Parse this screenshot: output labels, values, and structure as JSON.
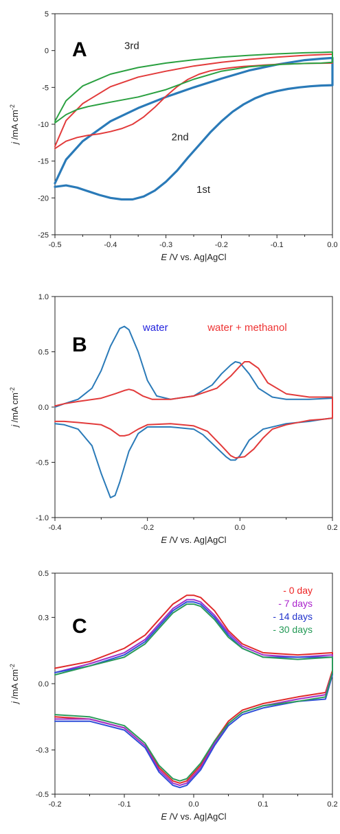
{
  "chart_data": [
    {
      "type": "line",
      "panel_label": "A",
      "xlabel": {
        "italic": "E",
        "rest": " /V vs. Ag|AgCl"
      },
      "ylabel": {
        "italic": "j",
        "rest": " /mA cm",
        "sup": "-2"
      },
      "xlim": [
        -0.5,
        0.0
      ],
      "ylim": [
        -25,
        5
      ],
      "xticks": [
        -0.5,
        -0.4,
        -0.3,
        -0.2,
        -0.1,
        0.0
      ],
      "xtick_labels": [
        "-0.5",
        "-0.4",
        "-0.3",
        "-0.2",
        "-0.1",
        "0.0"
      ],
      "yticks": [
        -25,
        -20,
        -15,
        -10,
        -5,
        0,
        5
      ],
      "ytick_labels": [
        "-25",
        "-20",
        "-15",
        "-10",
        "-5",
        "0",
        "5"
      ],
      "grid": false,
      "annotations": [
        {
          "text": "3rd",
          "x": -0.375,
          "y": 0.2,
          "color": "#222222"
        },
        {
          "text": "2nd",
          "x": -0.29,
          "y": -12.2,
          "color": "#222222"
        },
        {
          "text": "1st",
          "x": -0.245,
          "y": -19.3,
          "color": "#222222"
        }
      ],
      "series": [
        {
          "color": "#2a7ab8",
          "width": 3.2,
          "x": [
            -0.5,
            -0.48,
            -0.46,
            -0.44,
            -0.42,
            -0.4,
            -0.38,
            -0.36,
            -0.34,
            -0.32,
            -0.3,
            -0.28,
            -0.26,
            -0.24,
            -0.22,
            -0.2,
            -0.18,
            -0.16,
            -0.14,
            -0.12,
            -0.1,
            -0.08,
            -0.06,
            -0.04,
            -0.02,
            0.0,
            0.0,
            -0.02,
            -0.05,
            -0.1,
            -0.15,
            -0.2,
            -0.25,
            -0.3,
            -0.35,
            -0.4,
            -0.45,
            -0.48,
            -0.5
          ],
          "y": [
            -18.5,
            -18.3,
            -18.6,
            -19.1,
            -19.6,
            -20.0,
            -20.2,
            -20.2,
            -19.8,
            -19.0,
            -17.8,
            -16.3,
            -14.5,
            -12.8,
            -11.1,
            -9.6,
            -8.3,
            -7.3,
            -6.5,
            -5.9,
            -5.5,
            -5.2,
            -5.0,
            -4.85,
            -4.75,
            -4.7,
            -1.0,
            -1.1,
            -1.3,
            -1.9,
            -2.7,
            -3.8,
            -5.0,
            -6.3,
            -7.8,
            -9.6,
            -12.3,
            -14.8,
            -18.0
          ]
        },
        {
          "color": "#e23a3a",
          "width": 2,
          "x": [
            -0.5,
            -0.48,
            -0.46,
            -0.44,
            -0.42,
            -0.4,
            -0.38,
            -0.36,
            -0.34,
            -0.32,
            -0.3,
            -0.28,
            -0.26,
            -0.24,
            -0.22,
            -0.2,
            -0.18,
            -0.16,
            -0.14,
            -0.12,
            -0.1,
            -0.08,
            -0.06,
            -0.04,
            -0.02,
            0.0,
            0.0,
            -0.02,
            -0.05,
            -0.1,
            -0.15,
            -0.2,
            -0.25,
            -0.3,
            -0.35,
            -0.4,
            -0.45,
            -0.48,
            -0.5
          ],
          "y": [
            -13.3,
            -12.3,
            -11.8,
            -11.5,
            -11.3,
            -11.0,
            -10.6,
            -10.0,
            -9.0,
            -7.7,
            -6.2,
            -4.9,
            -3.9,
            -3.2,
            -2.75,
            -2.5,
            -2.3,
            -2.15,
            -2.05,
            -1.95,
            -1.88,
            -1.82,
            -1.78,
            -1.74,
            -1.72,
            -1.7,
            -0.5,
            -0.55,
            -0.65,
            -0.9,
            -1.2,
            -1.6,
            -2.1,
            -2.8,
            -3.6,
            -4.9,
            -7.2,
            -9.5,
            -13.0
          ]
        },
        {
          "color": "#2aa040",
          "width": 2,
          "x": [
            -0.5,
            -0.48,
            -0.46,
            -0.44,
            -0.42,
            -0.4,
            -0.35,
            -0.3,
            -0.25,
            -0.2,
            -0.15,
            -0.1,
            -0.05,
            -0.02,
            0.0,
            0.0,
            -0.02,
            -0.05,
            -0.1,
            -0.15,
            -0.2,
            -0.25,
            -0.3,
            -0.35,
            -0.4,
            -0.45,
            -0.48,
            -0.5
          ],
          "y": [
            -9.8,
            -8.7,
            -8.0,
            -7.6,
            -7.3,
            -7.0,
            -6.3,
            -5.3,
            -3.9,
            -2.8,
            -2.2,
            -1.9,
            -1.75,
            -1.7,
            -1.6,
            -0.2,
            -0.25,
            -0.3,
            -0.45,
            -0.65,
            -0.9,
            -1.25,
            -1.7,
            -2.3,
            -3.2,
            -4.8,
            -6.8,
            -9.6
          ]
        }
      ]
    },
    {
      "type": "line",
      "panel_label": "B",
      "xlabel": {
        "italic": "E",
        "rest": " /V vs. Ag|AgCl"
      },
      "ylabel": {
        "italic": "j",
        "rest": " /mA cm",
        "sup": "-2"
      },
      "xlim": [
        -0.4,
        0.2
      ],
      "ylim": [
        -1.0,
        1.0
      ],
      "xticks": [
        -0.4,
        -0.2,
        0.0,
        0.2
      ],
      "xtick_labels": [
        "-0.4",
        "-0.2",
        "0.0",
        "0.2"
      ],
      "yticks": [
        -1.0,
        -0.5,
        0.0,
        0.5,
        1.0
      ],
      "ytick_labels": [
        "-1.0",
        "-0.5",
        "0.0",
        "0.5",
        "1.0"
      ],
      "grid": false,
      "annotations": [
        {
          "text": "water",
          "x": -0.21,
          "y": 0.69,
          "color": "#2222dd"
        },
        {
          "text": "water + methanol",
          "x": -0.07,
          "y": 0.69,
          "color": "#ee3333"
        }
      ],
      "series": [
        {
          "color": "#2a7ab8",
          "width": 2,
          "x": [
            -0.4,
            -0.38,
            -0.35,
            -0.32,
            -0.3,
            -0.28,
            -0.26,
            -0.25,
            -0.24,
            -0.22,
            -0.2,
            -0.18,
            -0.15,
            -0.1,
            -0.06,
            -0.04,
            -0.02,
            -0.01,
            0.0,
            0.02,
            0.04,
            0.07,
            0.1,
            0.15,
            0.2,
            0.2,
            0.18,
            0.15,
            0.1,
            0.05,
            0.02,
            0.0,
            -0.01,
            -0.02,
            -0.03,
            -0.05,
            -0.08,
            -0.1,
            -0.15,
            -0.2,
            -0.22,
            -0.24,
            -0.26,
            -0.27,
            -0.28,
            -0.3,
            -0.32,
            -0.35,
            -0.38,
            -0.4
          ],
          "y": [
            0.0,
            0.03,
            0.07,
            0.17,
            0.33,
            0.55,
            0.71,
            0.73,
            0.7,
            0.5,
            0.24,
            0.1,
            0.07,
            0.1,
            0.2,
            0.3,
            0.38,
            0.41,
            0.4,
            0.3,
            0.17,
            0.09,
            0.07,
            0.07,
            0.08,
            -0.1,
            -0.11,
            -0.13,
            -0.15,
            -0.2,
            -0.3,
            -0.44,
            -0.48,
            -0.48,
            -0.45,
            -0.37,
            -0.25,
            -0.2,
            -0.18,
            -0.18,
            -0.24,
            -0.4,
            -0.68,
            -0.8,
            -0.82,
            -0.6,
            -0.35,
            -0.2,
            -0.16,
            -0.15
          ]
        },
        {
          "color": "#e23a3a",
          "width": 2,
          "x": [
            -0.4,
            -0.38,
            -0.35,
            -0.3,
            -0.27,
            -0.25,
            -0.24,
            -0.23,
            -0.21,
            -0.19,
            -0.17,
            -0.15,
            -0.1,
            -0.05,
            -0.02,
            0.0,
            0.01,
            0.02,
            0.04,
            0.06,
            0.1,
            0.15,
            0.2,
            0.2,
            0.18,
            0.15,
            0.1,
            0.07,
            0.05,
            0.03,
            0.01,
            -0.01,
            -0.02,
            -0.04,
            -0.07,
            -0.1,
            -0.15,
            -0.2,
            -0.22,
            -0.24,
            -0.25,
            -0.26,
            -0.28,
            -0.3,
            -0.35,
            -0.38,
            -0.4
          ],
          "y": [
            0.01,
            0.03,
            0.05,
            0.08,
            0.12,
            0.15,
            0.16,
            0.15,
            0.1,
            0.07,
            0.07,
            0.07,
            0.1,
            0.17,
            0.28,
            0.37,
            0.41,
            0.41,
            0.35,
            0.22,
            0.12,
            0.09,
            0.09,
            -0.1,
            -0.11,
            -0.12,
            -0.16,
            -0.2,
            -0.28,
            -0.38,
            -0.45,
            -0.46,
            -0.44,
            -0.35,
            -0.22,
            -0.17,
            -0.15,
            -0.16,
            -0.2,
            -0.25,
            -0.26,
            -0.26,
            -0.2,
            -0.16,
            -0.14,
            -0.13,
            -0.13
          ]
        }
      ]
    },
    {
      "type": "line",
      "panel_label": "C",
      "xlabel": {
        "italic": "E",
        "rest": " /V vs. Ag|AgCl"
      },
      "ylabel": {
        "italic": "j",
        "rest": " /mA cm",
        "sup": "-2"
      },
      "xlim": [
        -0.2,
        0.2
      ],
      "ylim": [
        -0.5,
        0.5
      ],
      "xticks": [
        -0.2,
        -0.1,
        0.0,
        0.1,
        0.2
      ],
      "xtick_labels": [
        "-0.2",
        "-0.1",
        "0.0",
        "0.1",
        "0.2"
      ],
      "yticks": [
        -0.5,
        -0.3,
        0.0,
        0.3,
        0.5
      ],
      "ytick_labels": [
        "-0.5",
        "-0.3",
        "0.0",
        "0.3",
        "0.5"
      ],
      "grid": false,
      "legend": {
        "placement": "top-right",
        "entries": [
          {
            "label": "- 0 day",
            "color": "#ee2222"
          },
          {
            "label": "- 7 days",
            "color": "#aa22cc"
          },
          {
            "label": "- 14 days",
            "color": "#2233cc"
          },
          {
            "label": "- 30 days",
            "color": "#229955"
          }
        ]
      },
      "series": [
        {
          "name": "0 day",
          "color": "#e02a2a",
          "width": 2,
          "x": [
            -0.2,
            -0.15,
            -0.1,
            -0.07,
            -0.05,
            -0.03,
            -0.01,
            0.0,
            0.01,
            0.03,
            0.05,
            0.07,
            0.1,
            0.15,
            0.2,
            0.2,
            0.19,
            0.15,
            0.1,
            0.07,
            0.05,
            0.03,
            0.01,
            -0.01,
            -0.02,
            -0.03,
            -0.05,
            -0.07,
            -0.1,
            -0.15,
            -0.2
          ],
          "y": [
            0.07,
            0.1,
            0.16,
            0.22,
            0.29,
            0.36,
            0.4,
            0.4,
            0.39,
            0.33,
            0.24,
            0.18,
            0.14,
            0.13,
            0.14,
            0.06,
            -0.04,
            -0.06,
            -0.09,
            -0.12,
            -0.17,
            -0.26,
            -0.37,
            -0.44,
            -0.45,
            -0.44,
            -0.38,
            -0.28,
            -0.2,
            -0.16,
            -0.15
          ]
        },
        {
          "name": "7 days",
          "color": "#a030c8",
          "width": 2,
          "x": [
            -0.2,
            -0.15,
            -0.1,
            -0.07,
            -0.05,
            -0.03,
            -0.01,
            0.0,
            0.01,
            0.03,
            0.05,
            0.07,
            0.1,
            0.15,
            0.2,
            0.2,
            0.19,
            0.15,
            0.1,
            0.07,
            0.05,
            0.03,
            0.01,
            -0.01,
            -0.02,
            -0.03,
            -0.05,
            -0.07,
            -0.1,
            -0.15,
            -0.2
          ],
          "y": [
            0.05,
            0.09,
            0.14,
            0.2,
            0.27,
            0.34,
            0.38,
            0.38,
            0.37,
            0.31,
            0.23,
            0.17,
            0.13,
            0.12,
            0.13,
            0.05,
            -0.05,
            -0.07,
            -0.1,
            -0.13,
            -0.18,
            -0.27,
            -0.38,
            -0.45,
            -0.46,
            -0.45,
            -0.39,
            -0.28,
            -0.2,
            -0.16,
            -0.16
          ]
        },
        {
          "name": "14 days",
          "color": "#2f4fd8",
          "width": 2,
          "x": [
            -0.2,
            -0.15,
            -0.1,
            -0.07,
            -0.05,
            -0.03,
            -0.01,
            0.0,
            0.01,
            0.03,
            0.05,
            0.07,
            0.1,
            0.15,
            0.2,
            0.2,
            0.19,
            0.15,
            0.1,
            0.07,
            0.05,
            0.03,
            0.01,
            -0.01,
            -0.02,
            -0.03,
            -0.05,
            -0.07,
            -0.1,
            -0.15,
            -0.2
          ],
          "y": [
            0.05,
            0.08,
            0.13,
            0.19,
            0.26,
            0.33,
            0.37,
            0.37,
            0.36,
            0.3,
            0.22,
            0.16,
            0.12,
            0.12,
            0.12,
            0.04,
            -0.07,
            -0.08,
            -0.11,
            -0.14,
            -0.19,
            -0.28,
            -0.39,
            -0.46,
            -0.47,
            -0.46,
            -0.4,
            -0.29,
            -0.21,
            -0.17,
            -0.17
          ]
        },
        {
          "name": "30 days",
          "color": "#2a9a5a",
          "width": 2,
          "x": [
            -0.2,
            -0.15,
            -0.1,
            -0.07,
            -0.05,
            -0.03,
            -0.01,
            0.0,
            0.01,
            0.03,
            0.05,
            0.07,
            0.1,
            0.15,
            0.2,
            0.2,
            0.19,
            0.15,
            0.1,
            0.07,
            0.05,
            0.03,
            0.01,
            -0.01,
            -0.02,
            -0.03,
            -0.05,
            -0.07,
            -0.1,
            -0.15,
            -0.2
          ],
          "y": [
            0.04,
            0.08,
            0.12,
            0.18,
            0.25,
            0.32,
            0.36,
            0.36,
            0.35,
            0.29,
            0.21,
            0.16,
            0.12,
            0.11,
            0.12,
            0.05,
            -0.06,
            -0.08,
            -0.1,
            -0.13,
            -0.18,
            -0.26,
            -0.36,
            -0.43,
            -0.44,
            -0.43,
            -0.37,
            -0.27,
            -0.19,
            -0.15,
            -0.14
          ]
        }
      ]
    }
  ]
}
